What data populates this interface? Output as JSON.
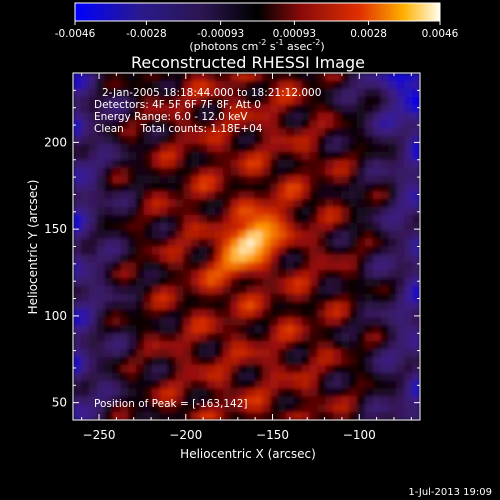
{
  "chart_data": {
    "type": "heatmap",
    "title": "Reconstructed RHESSI Image",
    "xlabel": "Heliocentric X (arcsec)",
    "ylabel": "Heliocentric Y (arcsec)",
    "xlim": [
      -265,
      -65
    ],
    "ylim": [
      40,
      240
    ],
    "x_ticks": [
      -250,
      -200,
      -150,
      -100
    ],
    "y_ticks": [
      50,
      100,
      150,
      200
    ],
    "colorbar": {
      "range": [
        -0.0046,
        0.0046
      ],
      "tick_labels": [
        "-0.0046",
        "-0.0028",
        "-0.00093",
        "0.00093",
        "0.0028",
        "0.0046"
      ],
      "unit_prefix": "(photons cm",
      "unit_sup1": "-2",
      "unit_mid": " s",
      "unit_sup2": "-1",
      "unit_mid2": " asec",
      "unit_sup3": "-2",
      "unit_suffix": ")"
    },
    "annotations": [
      "2-Jan-2005 18:18:44.000 to 18:21:12.000",
      "Detectors: 4F 5F 6F 7F 8F, Att 0",
      "Energy Range: 6.0 - 12.0 keV",
      "Clean     Total counts: 1.18E+04"
    ],
    "peak_label": "Position of Peak = [-163,142]",
    "peak": {
      "x": -163,
      "y": 142,
      "value": 0.0046
    }
  },
  "footer": {
    "date": "1-Jul-2013 19:09"
  }
}
